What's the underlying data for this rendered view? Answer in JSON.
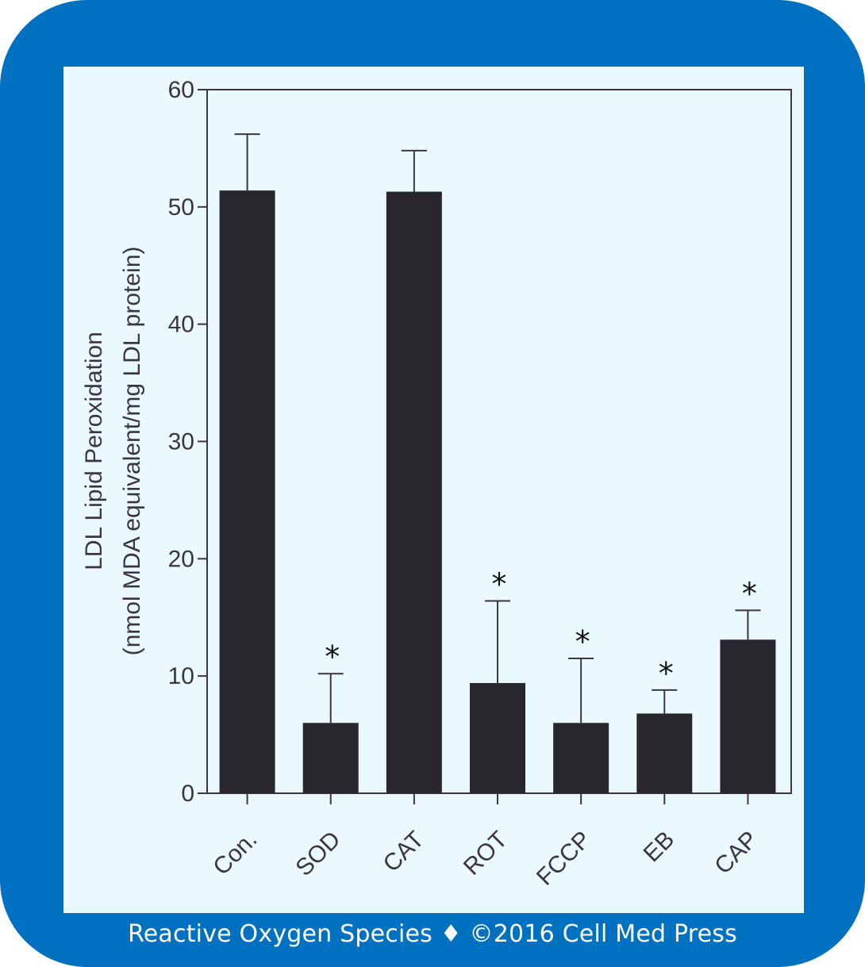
{
  "colors": {
    "frame": "#0071c1",
    "panel": "#eaf9fb",
    "bar": "#2a262e",
    "axis": "#3a3446",
    "text": "#3a3446"
  },
  "footer": "Reactive Oxygen Species ♦ ©2016 Cell Med Press",
  "chart_data": {
    "type": "bar",
    "title": "",
    "ylabel": "LDL Lipid Peroxidation",
    "ylabel_units": "(nmol MDA equivalent/mg LDL protein)",
    "xlabel": "",
    "ylim": [
      0,
      60
    ],
    "yticks": [
      0,
      10,
      20,
      30,
      40,
      50,
      60
    ],
    "categories": [
      "Con.",
      "SOD",
      "CAT",
      "ROT",
      "FCCP",
      "EB",
      "CAP"
    ],
    "values": [
      51.4,
      6.0,
      51.3,
      9.4,
      6.0,
      6.8,
      13.1
    ],
    "errors": [
      4.8,
      4.2,
      3.5,
      7.0,
      5.5,
      2.0,
      2.5
    ],
    "significance": [
      "",
      "*",
      "",
      "*",
      "*",
      "*",
      "*"
    ],
    "grid": false,
    "legend": "none"
  }
}
